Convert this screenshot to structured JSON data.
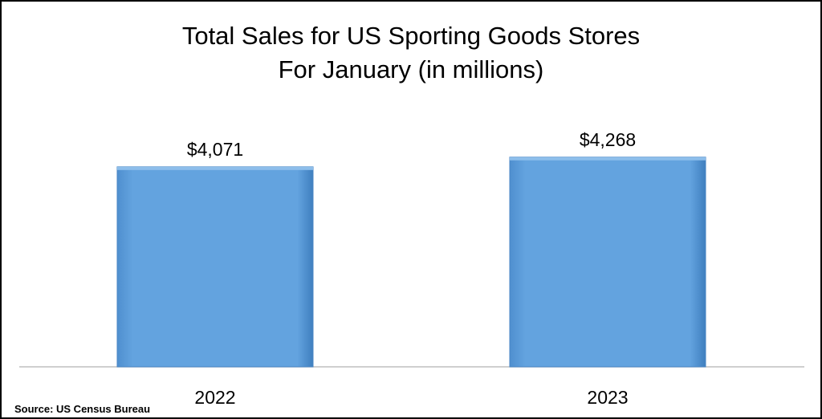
{
  "chart_data": {
    "type": "bar",
    "title": "Total Sales for US Sporting Goods Stores",
    "subtitle": "For January (in millions)",
    "categories": [
      "2022",
      "2023"
    ],
    "values": [
      4071,
      4268
    ],
    "value_labels": [
      "$4,071",
      "$4,268"
    ],
    "bar_color": "#63A3DF",
    "xlabel": "",
    "ylabel": "",
    "ylim": [
      0,
      5800
    ],
    "grid": false,
    "legend": "none"
  },
  "source": "Source: US Census Bureau"
}
